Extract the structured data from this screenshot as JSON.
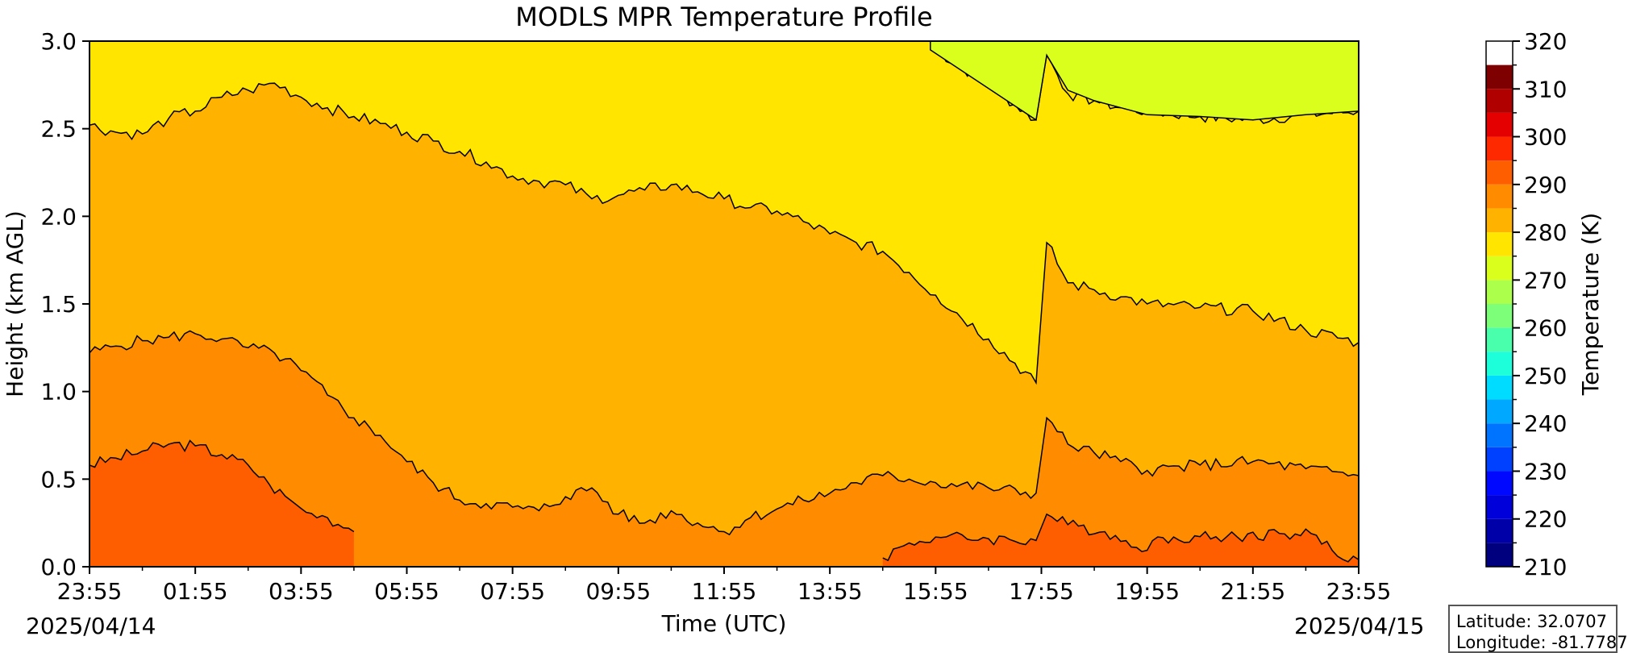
{
  "chart_data": {
    "type": "heatmap",
    "title": "MODLS MPR Temperature Profile",
    "xlabel": "Time (UTC)",
    "ylabel": "Height (km AGL)",
    "x_ticks": [
      "23:55",
      "01:55",
      "03:55",
      "05:55",
      "07:55",
      "09:55",
      "11:55",
      "13:55",
      "15:55",
      "17:55",
      "19:55",
      "21:55",
      "23:55"
    ],
    "x_range_hours": [
      0,
      24
    ],
    "start_date": "2025/04/14",
    "end_date": "2025/04/15",
    "y_ticks": [
      "0.0",
      "0.5",
      "1.0",
      "1.5",
      "2.0",
      "2.5",
      "3.0"
    ],
    "ylim": [
      0,
      3
    ],
    "colorbar": {
      "label": "Temperature (K)",
      "ticks": [
        "210",
        "220",
        "230",
        "240",
        "250",
        "260",
        "270",
        "280",
        "290",
        "300",
        "310",
        "320"
      ],
      "range": [
        210,
        320
      ],
      "levels": [
        210,
        215,
        220,
        225,
        230,
        235,
        240,
        245,
        250,
        255,
        260,
        265,
        270,
        275,
        280,
        285,
        290,
        295,
        300,
        305,
        310,
        315,
        320
      ],
      "colors": [
        "#00007f",
        "#0000a8",
        "#0000da",
        "#0008ff",
        "#0040ff",
        "#0074ff",
        "#00a8ff",
        "#00dcff",
        "#1cffda",
        "#4affac",
        "#7dff7a",
        "#acff4a",
        "#daff1c",
        "#ffe500",
        "#ffb200",
        "#ff8b00",
        "#ff5e00",
        "#ff2900",
        "#e40000",
        "#b10000",
        "#7f0000"
      ]
    },
    "contours": [
      {
        "level": 300,
        "color": "#ff5e00",
        "t": [
          0,
          0.5,
          1,
          1.5,
          2,
          2.5,
          3,
          3.4,
          3.8,
          4.1,
          4.5,
          4.9,
          5.0
        ],
        "h": [
          0.58,
          0.62,
          0.66,
          0.7,
          0.69,
          0.64,
          0.58,
          0.47,
          0.38,
          0.31,
          0.28,
          0.22,
          0.2
        ]
      },
      {
        "level": 300,
        "color": "#ff5e00",
        "t": [
          15.0,
          15.4,
          16.0,
          17.0,
          17.9,
          18.1,
          18.5,
          19.2,
          19.8,
          20.5,
          21.5,
          22.5,
          23.2,
          23.6,
          24
        ],
        "h": [
          0.05,
          0.12,
          0.17,
          0.16,
          0.15,
          0.3,
          0.24,
          0.2,
          0.11,
          0.17,
          0.17,
          0.19,
          0.18,
          0.06,
          0.04
        ]
      },
      {
        "level": 295,
        "color": "#ff8b00",
        "t": [
          0,
          0.5,
          1,
          1.5,
          2,
          2.5,
          3,
          3.5,
          4,
          4.5,
          5,
          5.5,
          6,
          6.5,
          7,
          7.5,
          8,
          8.5,
          9,
          9.5,
          10,
          10.5,
          11,
          11.5,
          12,
          12.5,
          13,
          13.5,
          14,
          14.5,
          15,
          15.5,
          16,
          17,
          17.9,
          18.1,
          18.5,
          19,
          19.5,
          20,
          21,
          22,
          23,
          24
        ],
        "h": [
          1.22,
          1.26,
          1.29,
          1.31,
          1.33,
          1.3,
          1.25,
          1.22,
          1.12,
          0.98,
          0.85,
          0.75,
          0.6,
          0.48,
          0.38,
          0.36,
          0.34,
          0.32,
          0.4,
          0.45,
          0.3,
          0.25,
          0.32,
          0.25,
          0.2,
          0.28,
          0.33,
          0.38,
          0.42,
          0.48,
          0.52,
          0.5,
          0.48,
          0.45,
          0.42,
          0.85,
          0.7,
          0.65,
          0.6,
          0.55,
          0.58,
          0.6,
          0.56,
          0.52
        ]
      },
      {
        "level": 290,
        "color": "#ffb200",
        "t": [
          0,
          0.5,
          1,
          1.5,
          2,
          2.5,
          3,
          3.5,
          4,
          4.5,
          5,
          5.5,
          6,
          6.5,
          7,
          7.5,
          8,
          8.5,
          9,
          9.5,
          10,
          10.5,
          11,
          11.5,
          12,
          12.5,
          13,
          13.5,
          14,
          14.5,
          15,
          15.5,
          16,
          17,
          17.9,
          18.1,
          18.5,
          19,
          19.5,
          20,
          21,
          22,
          23,
          24
        ],
        "h": [
          2.52,
          2.48,
          2.47,
          2.56,
          2.6,
          2.68,
          2.72,
          2.76,
          2.68,
          2.62,
          2.57,
          2.53,
          2.48,
          2.43,
          2.37,
          2.31,
          2.23,
          2.2,
          2.18,
          2.1,
          2.12,
          2.15,
          2.18,
          2.14,
          2.1,
          2.05,
          2.03,
          1.97,
          1.9,
          1.85,
          1.8,
          1.68,
          1.55,
          1.3,
          1.05,
          1.85,
          1.62,
          1.58,
          1.54,
          1.5,
          1.48,
          1.46,
          1.35,
          1.28
        ]
      },
      {
        "level": 285,
        "color": "#ffe500",
        "t": [
          16.0,
          17.0,
          17.9,
          18.1,
          18.5,
          19,
          19.5,
          20,
          21,
          22,
          23,
          24
        ],
        "h": [
          2.95,
          2.75,
          2.55,
          2.92,
          2.7,
          2.66,
          2.62,
          2.6,
          2.57,
          2.55,
          2.58,
          2.6
        ]
      }
    ]
  },
  "info_box": {
    "latitude_text": "Latitude: 32.0707",
    "longitude_text": "Longitude: -81.7787"
  }
}
